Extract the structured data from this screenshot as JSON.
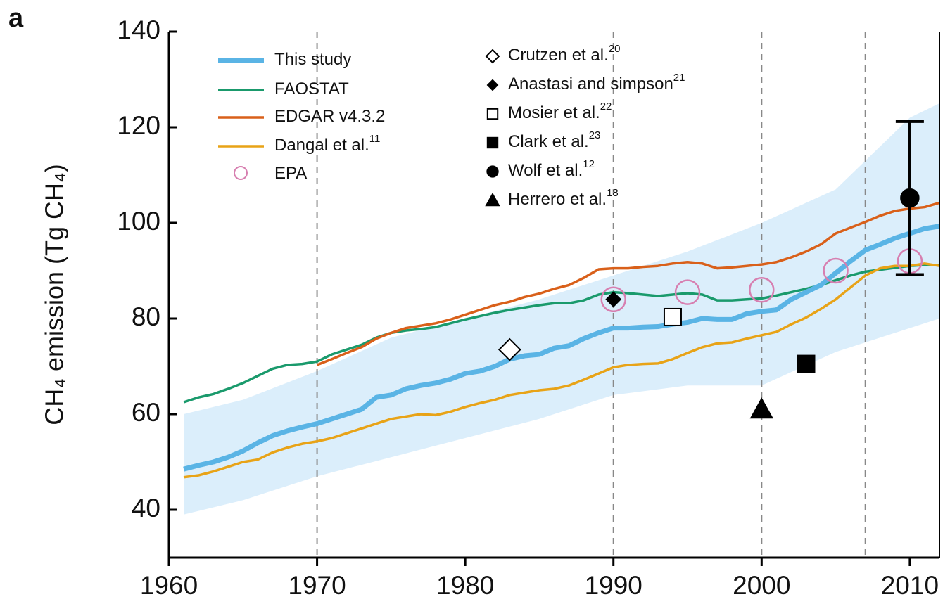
{
  "chart_data": {
    "type": "line",
    "panel_label": "a",
    "ylabel": "CH₄ emission (Tg CH₄)",
    "xlim": [
      1960,
      2012
    ],
    "ylim": [
      30,
      140
    ],
    "xticks": [
      1960,
      1970,
      1980,
      1990,
      2000,
      2010
    ],
    "yticks": [
      40,
      60,
      80,
      100,
      120,
      140
    ],
    "vlines": [
      1970,
      1990,
      2000,
      2007
    ],
    "x": [
      1961,
      1962,
      1963,
      1964,
      1965,
      1966,
      1967,
      1968,
      1969,
      1970,
      1971,
      1972,
      1973,
      1974,
      1975,
      1976,
      1977,
      1978,
      1979,
      1980,
      1981,
      1982,
      1983,
      1984,
      1985,
      1986,
      1987,
      1988,
      1989,
      1990,
      1991,
      1992,
      1993,
      1994,
      1995,
      1996,
      1997,
      1998,
      1999,
      2000,
      2001,
      2002,
      2003,
      2004,
      2005,
      2006,
      2007,
      2008,
      2009,
      2010,
      2011,
      2012
    ],
    "series": [
      {
        "name": "This study",
        "color": "#5ab4e5",
        "values": [
          48.5,
          49.3,
          50,
          51,
          52.3,
          54,
          55.5,
          56.5,
          57.3,
          58,
          59,
          60,
          61,
          63.5,
          64,
          65.3,
          66,
          66.5,
          67.3,
          68.5,
          69,
          70,
          71.5,
          72.2,
          72.5,
          73.8,
          74.3,
          75.8,
          77,
          78,
          78,
          78.2,
          78.3,
          78.8,
          79.2,
          80,
          79.8,
          79.8,
          81,
          81.5,
          81.8,
          84,
          85.5,
          87,
          89.5,
          92,
          94.3,
          95.5,
          96.8,
          97.8,
          98.8,
          99.3
        ]
      },
      {
        "name": "FAOSTAT",
        "color": "#1a9a6c",
        "values": [
          62.5,
          63.5,
          64.2,
          65.3,
          66.5,
          68,
          69.5,
          70.3,
          70.5,
          71,
          72.5,
          73.5,
          74.5,
          76,
          77,
          77.5,
          77.8,
          78.2,
          79,
          79.8,
          80.5,
          81.2,
          81.8,
          82.3,
          82.8,
          83.2,
          83.2,
          83.8,
          85,
          85.5,
          85.3,
          85,
          84.7,
          85,
          85.3,
          85,
          83.8,
          83.8,
          84,
          84.2,
          84.8,
          85.5,
          86.2,
          87,
          88,
          89,
          89.8,
          90.2,
          90.6,
          91,
          91.2,
          91.2
        ]
      },
      {
        "name": "EDGAR v4.3.2",
        "color": "#d9601a",
        "values": [
          null,
          null,
          null,
          null,
          null,
          null,
          null,
          null,
          null,
          70.3,
          71.5,
          72.8,
          74,
          75.8,
          77,
          78,
          78.5,
          79,
          79.8,
          80.8,
          81.8,
          82.8,
          83.5,
          84.5,
          85.2,
          86.2,
          87,
          88.5,
          90.3,
          90.5,
          90.5,
          90.8,
          91,
          91.5,
          91.8,
          91.5,
          90.5,
          90.7,
          91,
          91.3,
          91.8,
          92.8,
          94,
          95.5,
          97.8,
          99,
          100.2,
          101.5,
          102.5,
          103,
          103.3,
          104.2
        ]
      },
      {
        "name": "Dangal et al.",
        "ref": "11",
        "color": "#e8a317",
        "values": [
          46.8,
          47.2,
          48,
          49,
          50,
          50.5,
          52,
          53,
          53.8,
          54.3,
          55,
          56,
          57,
          58,
          59,
          59.5,
          60,
          59.8,
          60.5,
          61.5,
          62.3,
          63,
          64,
          64.5,
          65,
          65.3,
          66,
          67.2,
          68.5,
          69.8,
          70.3,
          70.5,
          70.6,
          71.5,
          72.8,
          74,
          74.8,
          75,
          75.8,
          76.5,
          77.2,
          78.8,
          80.2,
          82,
          84,
          86.5,
          89,
          90.5,
          91,
          91,
          91.5,
          91
        ]
      }
    ],
    "band": {
      "color": "#dbeefb",
      "x": [
        1961,
        1965,
        1970,
        1975,
        1980,
        1985,
        1990,
        1995,
        2000,
        2005,
        2010,
        2012
      ],
      "lower": [
        39,
        42,
        47,
        51,
        55,
        59,
        64,
        66,
        66,
        73,
        78,
        80
      ],
      "upper": [
        60,
        63,
        69,
        76,
        80,
        84,
        89,
        94,
        100,
        107,
        122,
        125
      ]
    },
    "epa": {
      "name": "EPA",
      "color": "#d77fb0",
      "x": [
        1990,
        1995,
        2000,
        2005,
        2010
      ],
      "values": [
        84,
        85.5,
        86,
        90,
        92
      ]
    },
    "points": [
      {
        "name": "Crutzen et al.",
        "ref": "20",
        "marker": "diamond-open",
        "x": 1983,
        "value": 73.5
      },
      {
        "name": "Anastasi and simpson",
        "ref": "21",
        "marker": "diamond",
        "x": 1990,
        "value": 84
      },
      {
        "name": "Mosier et al.",
        "ref": "22",
        "marker": "square-open",
        "x": 1994,
        "value": 80.3
      },
      {
        "name": "Clark et al.",
        "ref": "23",
        "marker": "square",
        "x": 2003,
        "value": 70.5
      },
      {
        "name": "Wolf et al.",
        "ref": "12",
        "marker": "circle",
        "x": 2010,
        "value": 105.2,
        "err": 16
      },
      {
        "name": "Herrero et al.",
        "ref": "18",
        "marker": "triangle",
        "x": 2000,
        "value": 61
      }
    ]
  }
}
